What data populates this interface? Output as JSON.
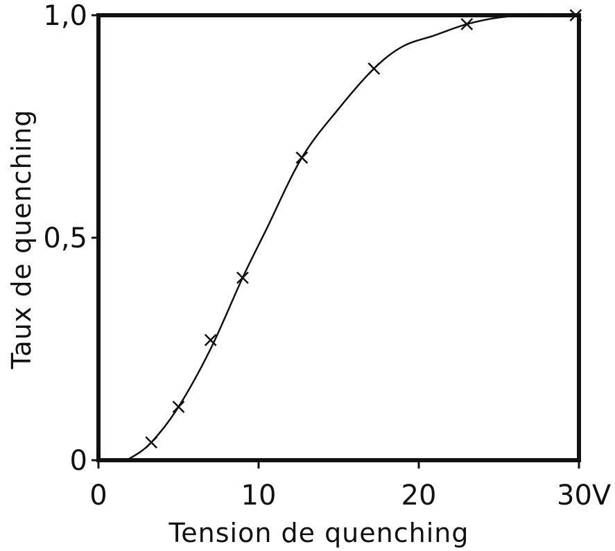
{
  "chart_data": {
    "type": "line",
    "title": "",
    "xlabel": "Tension de quenching",
    "ylabel": "Taux de quenching",
    "xlim": [
      0,
      30
    ],
    "ylim": [
      0,
      1.0
    ],
    "x_ticks": [
      {
        "value": 0,
        "label": "0"
      },
      {
        "value": 10,
        "label": "10"
      },
      {
        "value": 20,
        "label": "20"
      },
      {
        "value": 30,
        "label": "30V"
      }
    ],
    "y_ticks": [
      {
        "value": 0,
        "label": "0"
      },
      {
        "value": 0.5,
        "label": "0,5"
      },
      {
        "value": 1.0,
        "label": "1,0"
      }
    ],
    "grid": false,
    "legend": "none",
    "series": [
      {
        "marker": "x",
        "points": [
          {
            "x": 3.3,
            "y": 0.04
          },
          {
            "x": 5.0,
            "y": 0.12
          },
          {
            "x": 7.0,
            "y": 0.27
          },
          {
            "x": 9.0,
            "y": 0.41
          },
          {
            "x": 12.7,
            "y": 0.68
          },
          {
            "x": 17.2,
            "y": 0.88
          },
          {
            "x": 23.0,
            "y": 0.98
          },
          {
            "x": 29.8,
            "y": 1.0
          }
        ],
        "curve": [
          {
            "x": 1.4,
            "y": 0.0
          },
          {
            "x": 2.0,
            "y": 0.005
          },
          {
            "x": 3.3,
            "y": 0.04
          },
          {
            "x": 5.0,
            "y": 0.12
          },
          {
            "x": 7.0,
            "y": 0.25
          },
          {
            "x": 9.0,
            "y": 0.41
          },
          {
            "x": 10.5,
            "y": 0.52
          },
          {
            "x": 12.7,
            "y": 0.68
          },
          {
            "x": 15.0,
            "y": 0.79
          },
          {
            "x": 17.2,
            "y": 0.88
          },
          {
            "x": 19.0,
            "y": 0.93
          },
          {
            "x": 21.0,
            "y": 0.955
          },
          {
            "x": 23.0,
            "y": 0.98
          },
          {
            "x": 25.0,
            "y": 0.995
          },
          {
            "x": 27.0,
            "y": 1.0
          },
          {
            "x": 30.0,
            "y": 1.0
          }
        ]
      }
    ],
    "colors": {
      "ink": "#111111",
      "background": "#ffffff"
    }
  }
}
